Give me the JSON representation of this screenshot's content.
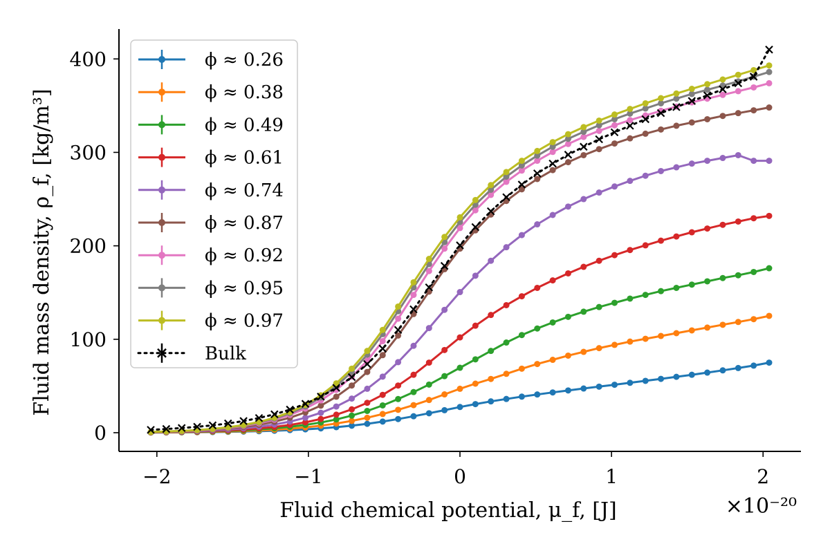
{
  "chart_data": {
    "type": "line",
    "title": "",
    "xlabel": "Fluid chemical potential, μ_f, [J]",
    "ylabel": "Fluid mass density, ρ_f, [kg/m³]",
    "x_scale_label": "×10⁻²⁰",
    "xlim": [
      -2.25,
      2.25
    ],
    "ylim": [
      -20,
      432
    ],
    "xticks": [
      -2,
      -1,
      0,
      1,
      2
    ],
    "xtick_labels": [
      "−2",
      "−1",
      "0",
      "1",
      "2"
    ],
    "yticks": [
      0,
      100,
      200,
      300,
      400
    ],
    "ytick_labels": [
      "0",
      "100",
      "200",
      "300",
      "400"
    ],
    "grid": false,
    "legend_position": "upper-left",
    "x_range": {
      "start": -2.04,
      "end": 2.04,
      "count": 41
    },
    "series": [
      {
        "name": "ϕ ≈ 0.26",
        "color": "#1f77b4",
        "style": "solid-dot",
        "values": [
          0.2,
          0.3,
          0.4,
          0.5,
          0.7,
          0.9,
          1.2,
          1.6,
          2.1,
          2.8,
          3.6,
          4.6,
          5.9,
          7.5,
          9.5,
          11.9,
          14.6,
          17.6,
          20.8,
          24.1,
          27.5,
          30.6,
          33.5,
          36.1,
          38.6,
          40.9,
          43.1,
          45.2,
          47.3,
          49.3,
          51.3,
          53.4,
          55.5,
          57.6,
          59.8,
          62.0,
          64.3,
          66.7,
          69.2,
          71.8,
          75.0
        ]
      },
      {
        "name": "ϕ ≈ 0.38",
        "color": "#ff7f0e",
        "style": "solid-dot",
        "values": [
          0.2,
          0.4,
          0.5,
          0.7,
          1.0,
          1.3,
          1.8,
          2.4,
          3.2,
          4.3,
          5.7,
          7.5,
          9.8,
          12.6,
          16.0,
          20.0,
          24.5,
          29.5,
          35.0,
          41.0,
          47.0,
          52.5,
          57.5,
          63.0,
          68.5,
          73.5,
          78.0,
          82.5,
          86.5,
          90.5,
          94.0,
          97.5,
          100.5,
          103.5,
          106.5,
          109.5,
          112.5,
          115.5,
          118.5,
          121.5,
          125.0
        ]
      },
      {
        "name": "ϕ ≈ 0.49",
        "color": "#2ca02c",
        "style": "solid-dot",
        "values": [
          0.3,
          0.5,
          0.7,
          1.0,
          1.4,
          1.9,
          2.6,
          3.5,
          4.7,
          6.3,
          8.3,
          10.9,
          14.2,
          18.3,
          23.3,
          29.2,
          36.0,
          43.5,
          51.5,
          60.5,
          69.5,
          78.5,
          87.5,
          96.5,
          104.5,
          111.5,
          118.0,
          124.0,
          129.5,
          134.5,
          139.0,
          143.5,
          147.5,
          151.5,
          155.0,
          158.5,
          162.0,
          165.5,
          168.5,
          172.0,
          176.0
        ]
      },
      {
        "name": "ϕ ≈ 0.61",
        "color": "#d62728",
        "style": "solid-dot",
        "values": [
          0.4,
          0.6,
          0.9,
          1.3,
          1.8,
          2.5,
          3.4,
          4.6,
          6.2,
          8.3,
          11.1,
          14.7,
          19.3,
          25.0,
          32.0,
          40.5,
          50.5,
          62.0,
          75.0,
          88.5,
          102.0,
          114.5,
          126.0,
          136.5,
          146.0,
          155.0,
          163.0,
          170.5,
          177.5,
          184.0,
          190.0,
          195.5,
          200.5,
          205.5,
          210.0,
          214.5,
          218.5,
          222.5,
          226.0,
          229.5,
          232.0
        ]
      },
      {
        "name": "ϕ ≈ 0.74",
        "color": "#9467bd",
        "style": "solid-dot",
        "values": [
          0.5,
          0.8,
          1.2,
          1.7,
          2.4,
          3.4,
          4.7,
          6.4,
          8.8,
          11.9,
          16.0,
          21.3,
          28.0,
          36.5,
          47.0,
          60.0,
          75.5,
          93.0,
          112.0,
          131.5,
          150.5,
          168.0,
          184.0,
          198.5,
          211.5,
          223.0,
          233.0,
          242.0,
          250.0,
          257.0,
          263.5,
          269.5,
          275.0,
          280.0,
          284.0,
          288.0,
          291.0,
          294.0,
          297.0,
          291.0,
          291.0
        ]
      },
      {
        "name": "ϕ ≈ 0.87",
        "color": "#8c564b",
        "style": "solid-dot",
        "values": [
          0.6,
          1.0,
          1.5,
          2.2,
          3.1,
          4.4,
          6.1,
          8.5,
          11.7,
          16.0,
          21.7,
          29.0,
          38.5,
          50.5,
          65.0,
          83.0,
          104.0,
          127.0,
          151.0,
          175.0,
          197.0,
          216.5,
          233.5,
          248.0,
          260.5,
          271.5,
          281.0,
          289.5,
          297.0,
          303.5,
          309.5,
          315.0,
          320.0,
          324.5,
          328.5,
          332.0,
          335.5,
          339.0,
          342.0,
          345.0,
          348.0
        ]
      },
      {
        "name": "ϕ ≈ 0.92",
        "color": "#e377c2",
        "style": "solid-dot",
        "values": [
          0.7,
          1.1,
          1.7,
          2.5,
          3.6,
          5.1,
          7.2,
          10.0,
          13.9,
          19.0,
          25.8,
          34.6,
          45.8,
          60.0,
          77.0,
          98.0,
          122.0,
          147.5,
          173.0,
          197.0,
          219.0,
          238.0,
          254.5,
          268.5,
          280.5,
          291.0,
          300.5,
          309.0,
          316.5,
          323.0,
          329.0,
          334.5,
          339.5,
          344.5,
          349.0,
          353.5,
          357.5,
          361.5,
          365.5,
          369.5,
          374.0
        ]
      },
      {
        "name": "ϕ ≈ 0.95",
        "color": "#7f7f7f",
        "style": "solid-dot",
        "values": [
          0.7,
          1.2,
          1.8,
          2.7,
          3.9,
          5.5,
          7.8,
          10.9,
          15.1,
          20.7,
          28.1,
          37.7,
          49.9,
          65.0,
          83.5,
          105.5,
          130.0,
          155.5,
          180.5,
          204.0,
          225.5,
          244.0,
          260.0,
          274.0,
          286.0,
          296.5,
          306.0,
          314.5,
          322.0,
          329.0,
          335.5,
          341.5,
          347.0,
          352.5,
          357.5,
          362.5,
          367.0,
          371.5,
          376.0,
          381.0,
          386.0
        ]
      },
      {
        "name": "ϕ ≈ 0.97",
        "color": "#bcbd22",
        "style": "solid-dot",
        "values": [
          0.8,
          1.3,
          1.9,
          2.8,
          4.1,
          5.8,
          8.2,
          11.5,
          16.0,
          22.0,
          29.8,
          40.0,
          52.8,
          68.5,
          87.5,
          110.0,
          135.0,
          161.0,
          186.0,
          209.5,
          230.5,
          249.0,
          265.0,
          279.0,
          291.0,
          301.5,
          311.0,
          319.5,
          327.0,
          334.0,
          340.5,
          346.5,
          352.5,
          358.0,
          363.0,
          368.0,
          373.0,
          378.0,
          383.0,
          388.0,
          393.0
        ]
      },
      {
        "name": "Bulk",
        "color": "#000000",
        "style": "dotted-x",
        "values": [
          3.0,
          4.0,
          5.0,
          6.3,
          7.9,
          9.9,
          12.5,
          15.7,
          19.7,
          24.7,
          30.9,
          38.6,
          48.0,
          59.5,
          73.5,
          90.0,
          110.0,
          132.0,
          155.5,
          178.5,
          200.5,
          220.0,
          237.0,
          252.0,
          265.5,
          277.5,
          288.0,
          297.5,
          306.0,
          314.0,
          321.5,
          328.5,
          335.5,
          342.0,
          348.5,
          355.0,
          361.0,
          367.5,
          374.0,
          381.0,
          410.0
        ]
      }
    ]
  }
}
